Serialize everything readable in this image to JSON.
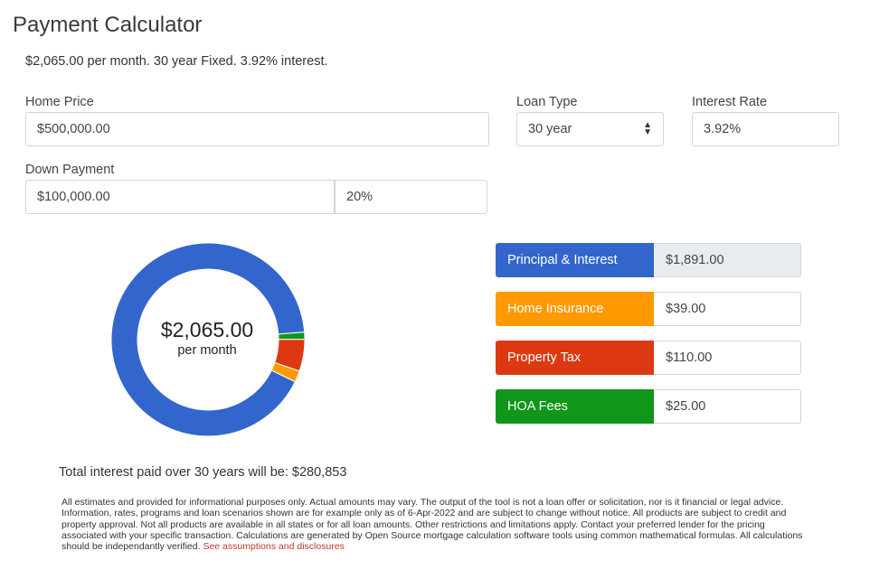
{
  "header": {
    "title": "Payment Calculator",
    "summary": "$2,065.00 per month. 30 year Fixed. 3.92% interest."
  },
  "form": {
    "home_price": {
      "label": "Home Price",
      "value": "$500,000.00"
    },
    "loan_type": {
      "label": "Loan Type",
      "selected": "30 year"
    },
    "interest_rate": {
      "label": "Interest Rate",
      "value": "3.92%"
    },
    "down_payment": {
      "label": "Down Payment",
      "amount": "$100,000.00",
      "percent": "20%"
    }
  },
  "breakdown": {
    "monthly_total": "$2,065.00",
    "per_month_label": "per month",
    "items": [
      {
        "label": "Principal & Interest",
        "value": "$1,891.00",
        "amount": 1891,
        "color": "#3366cc"
      },
      {
        "label": "Home Insurance",
        "value": "$39.00",
        "amount": 39,
        "color": "#ff9900"
      },
      {
        "label": "Property Tax",
        "value": "$110.00",
        "amount": 110,
        "color": "#dc3912"
      },
      {
        "label": "HOA Fees",
        "value": "$25.00",
        "amount": 25,
        "color": "#109618"
      }
    ]
  },
  "footer": {
    "total_interest": "Total interest paid over 30 years will be: $280,853",
    "disclaimer": "All estimates and provided for informational purposes only. Actual amounts may vary. The output of the tool is not a loan offer or solicitation, nor is it financial or legal advice. Information, rates, programs and loan scenarios shown are for example only as of 6-Apr-2022 and are subject to change without notice. All products are subject to credit and property approval. Not all products are available in all states or for all loan amounts. Other restrictions and limitations apply. Contact your preferred lender for the pricing associated with your specific transaction. Calculations are generated by Open Source mortgage calculation software tools using common mathematical formulas. All calculations should be independantly verified.",
    "disclosure_link": "See assumptions and disclosures"
  }
}
